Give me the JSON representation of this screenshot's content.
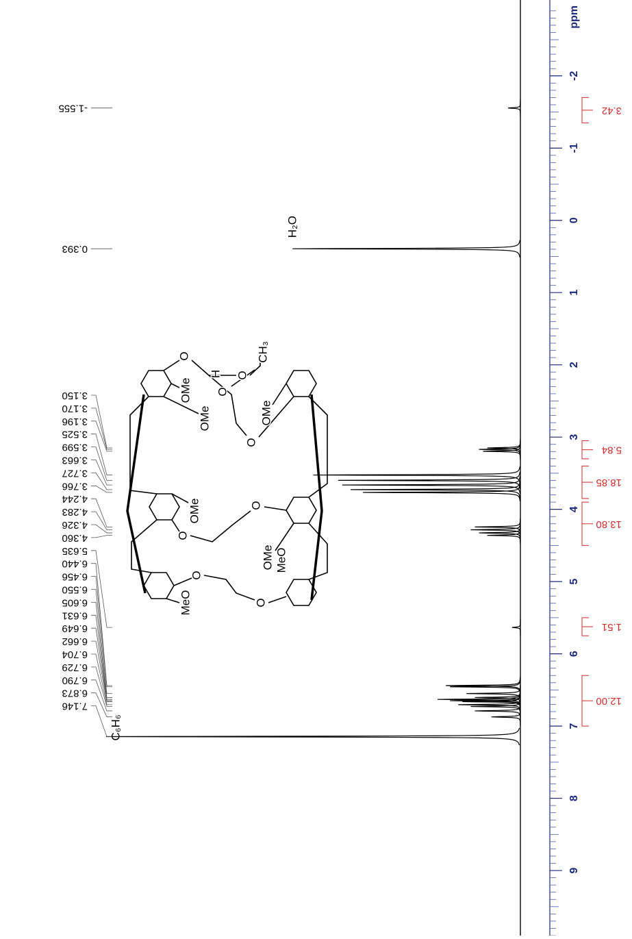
{
  "chart_data": {
    "type": "nmr",
    "x_label": "ppm",
    "xlim": [
      9.9,
      -3.05
    ],
    "xticks": [
      -2,
      -1,
      0,
      1,
      2,
      3,
      4,
      5,
      6,
      7,
      8,
      9
    ],
    "x": [
      {
        "value": -1.555,
        "label": "-1.555"
      },
      {
        "value": 0.393,
        "label": "0.393"
      },
      {
        "value": 3.15,
        "label": "3.150"
      },
      {
        "value": 3.17,
        "label": "3.170"
      },
      {
        "value": 3.196,
        "label": "3.196"
      },
      {
        "value": 3.525,
        "label": "3.525"
      },
      {
        "value": 3.599,
        "label": "3.599"
      },
      {
        "value": 3.663,
        "label": "3.663"
      },
      {
        "value": 3.727,
        "label": "3.727"
      },
      {
        "value": 3.766,
        "label": "3.766"
      },
      {
        "value": 4.244,
        "label": "4.244"
      },
      {
        "value": 4.283,
        "label": "4.283"
      },
      {
        "value": 4.326,
        "label": "4.326"
      },
      {
        "value": 4.36,
        "label": "4.360"
      },
      {
        "value": 5.635,
        "label": "5.635"
      },
      {
        "value": 6.44,
        "label": "6.440"
      },
      {
        "value": 6.456,
        "label": "6.456"
      },
      {
        "value": 6.55,
        "label": "6.550"
      },
      {
        "value": 6.605,
        "label": "6.605"
      },
      {
        "value": 6.631,
        "label": "6.631"
      },
      {
        "value": 6.649,
        "label": "6.649"
      },
      {
        "value": 6.662,
        "label": "6.662"
      },
      {
        "value": 6.704,
        "label": "6.704"
      },
      {
        "value": 6.729,
        "label": "6.729"
      },
      {
        "value": 6.79,
        "label": "6.790"
      },
      {
        "value": 6.873,
        "label": "6.873"
      },
      {
        "value": 7.146,
        "label": "7.146"
      }
    ],
    "values": [
      3,
      55,
      8,
      10,
      9,
      50,
      44,
      43,
      41,
      38,
      11,
      12,
      10,
      8,
      2,
      18,
      17,
      13,
      11,
      20,
      17,
      14,
      15,
      12,
      11,
      7,
      100
    ],
    "color": "#000000",
    "integral_color": "#d42a2a",
    "axis_color": "#1c2a7a",
    "integrals": [
      {
        "from": -1.7,
        "to": -1.35,
        "value": 3.42,
        "label": "3.42"
      },
      {
        "from": 3.05,
        "to": 3.3,
        "value": 5.84,
        "label": "5.84"
      },
      {
        "from": 3.4,
        "to": 3.85,
        "value": 18.85,
        "label": "18.85"
      },
      {
        "from": 3.9,
        "to": 4.5,
        "value": 13.8,
        "label": "13.80"
      },
      {
        "from": 5.5,
        "to": 5.75,
        "value": 1.51,
        "label": "1.51"
      },
      {
        "from": 6.3,
        "to": 7.0,
        "value": 12,
        "label": "12.00"
      }
    ],
    "annotations": [
      "H₂O",
      "C₆H₆"
    ]
  },
  "structure": {
    "labels": [
      "O",
      "OMe",
      "OMe",
      "H",
      "O",
      "O",
      "CH₃",
      "OMe",
      "O",
      "OMe",
      "O",
      "O",
      "OMe",
      "MeO",
      "O",
      "O",
      "MeO"
    ]
  }
}
